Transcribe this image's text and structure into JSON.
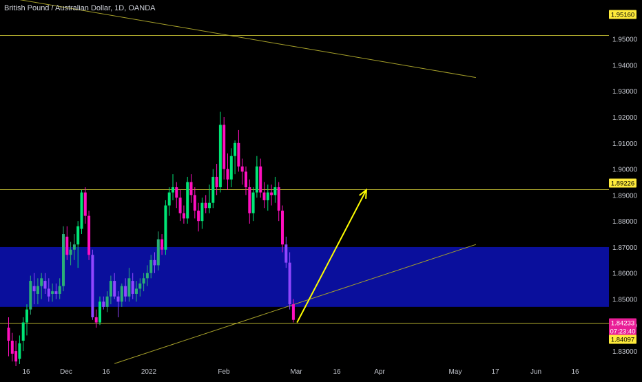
{
  "chart_data": {
    "type": "candlestick",
    "title": "British Pound / Australian Dollar, 1D, OANDA",
    "ylim": [
      1.8242,
      1.965
    ],
    "y_ticks": [
      "1.83000",
      "1.84000",
      "1.85000",
      "1.86000",
      "1.87000",
      "1.88000",
      "1.89000",
      "1.90000",
      "1.91000",
      "1.92000",
      "1.93000",
      "1.94000",
      "1.95000"
    ],
    "x_ticks": [
      "16",
      "Dec",
      "16",
      "2022",
      "Feb",
      "Mar",
      "16",
      "Apr",
      "May",
      "17",
      "Jun",
      "16"
    ],
    "price_labels": [
      {
        "text": "1.95160",
        "value": 1.9516,
        "color": "#ffeb3b",
        "text_color": "#000000"
      },
      {
        "text": "1.89226",
        "value": 1.89226,
        "color": "#ffeb3b",
        "text_color": "#000000"
      },
      {
        "text": "1.84233",
        "value": 1.84233,
        "color": "#e91e97",
        "text_color": "#ffffff"
      },
      {
        "text": "07:23:40",
        "value": 1.84233,
        "color": "#e91e97",
        "text_color": "#ffffff"
      },
      {
        "text": "1.84097",
        "value": 1.84097,
        "color": "#ffeb3b",
        "text_color": "#000000"
      }
    ],
    "horizontal_lines": [
      1.9516,
      1.89226,
      1.84097
    ],
    "zone": {
      "from": 1.847,
      "to": 1.87,
      "color": "#0a0f9c"
    },
    "candles": [
      [
        1.839,
        1.843,
        1.828,
        1.834
      ],
      [
        1.834,
        1.837,
        1.826,
        1.829
      ],
      [
        1.83,
        1.834,
        1.823,
        1.826
      ],
      [
        1.827,
        1.836,
        1.825,
        1.833
      ],
      [
        1.834,
        1.843,
        1.83,
        1.841
      ],
      [
        1.841,
        1.848,
        1.836,
        1.846
      ],
      [
        1.846,
        1.859,
        1.844,
        1.857
      ],
      [
        1.855,
        1.86,
        1.848,
        1.853
      ],
      [
        1.852,
        1.858,
        1.848,
        1.855
      ],
      [
        1.855,
        1.86,
        1.85,
        1.858
      ],
      [
        1.857,
        1.86,
        1.852,
        1.854
      ],
      [
        1.854,
        1.858,
        1.849,
        1.851
      ],
      [
        1.852,
        1.856,
        1.849,
        1.853
      ],
      [
        1.853,
        1.856,
        1.85,
        1.852
      ],
      [
        1.852,
        1.858,
        1.85,
        1.855
      ],
      [
        1.855,
        1.878,
        1.853,
        1.875
      ],
      [
        1.874,
        1.878,
        1.865,
        1.867
      ],
      [
        1.867,
        1.872,
        1.863,
        1.869
      ],
      [
        1.869,
        1.875,
        1.865,
        1.871
      ],
      [
        1.871,
        1.88,
        1.862,
        1.878
      ],
      [
        1.877,
        1.892,
        1.875,
        1.891
      ],
      [
        1.891,
        1.893,
        1.879,
        1.882
      ],
      [
        1.882,
        1.884,
        1.865,
        1.867
      ],
      [
        1.867,
        1.869,
        1.842,
        1.843
      ],
      [
        1.843,
        1.846,
        1.839,
        1.841
      ],
      [
        1.841,
        1.851,
        1.84,
        1.849
      ],
      [
        1.849,
        1.851,
        1.846,
        1.847
      ],
      [
        1.847,
        1.853,
        1.845,
        1.851
      ],
      [
        1.851,
        1.859,
        1.848,
        1.857
      ],
      [
        1.857,
        1.86,
        1.85,
        1.851
      ],
      [
        1.851,
        1.853,
        1.843,
        1.849
      ],
      [
        1.849,
        1.856,
        1.847,
        1.855
      ],
      [
        1.855,
        1.858,
        1.849,
        1.851
      ],
      [
        1.851,
        1.862,
        1.849,
        1.858
      ],
      [
        1.857,
        1.86,
        1.85,
        1.852
      ],
      [
        1.852,
        1.857,
        1.849,
        1.854
      ],
      [
        1.854,
        1.858,
        1.851,
        1.856
      ],
      [
        1.856,
        1.86,
        1.853,
        1.858
      ],
      [
        1.858,
        1.863,
        1.855,
        1.86
      ],
      [
        1.86,
        1.867,
        1.858,
        1.865
      ],
      [
        1.865,
        1.868,
        1.86,
        1.863
      ],
      [
        1.863,
        1.876,
        1.861,
        1.873
      ],
      [
        1.873,
        1.875,
        1.867,
        1.869
      ],
      [
        1.869,
        1.888,
        1.867,
        1.886
      ],
      [
        1.886,
        1.893,
        1.882,
        1.891
      ],
      [
        1.891,
        1.898,
        1.888,
        1.893
      ],
      [
        1.893,
        1.895,
        1.885,
        1.889
      ],
      [
        1.889,
        1.892,
        1.88,
        1.883
      ],
      [
        1.883,
        1.886,
        1.879,
        1.881
      ],
      [
        1.881,
        1.897,
        1.879,
        1.895
      ],
      [
        1.895,
        1.898,
        1.887,
        1.89
      ],
      [
        1.89,
        1.893,
        1.881,
        1.884
      ],
      [
        1.884,
        1.887,
        1.876,
        1.88
      ],
      [
        1.88,
        1.889,
        1.877,
        1.887
      ],
      [
        1.887,
        1.89,
        1.883,
        1.885
      ],
      [
        1.885,
        1.894,
        1.883,
        1.887
      ],
      [
        1.887,
        1.9,
        1.885,
        1.897
      ],
      [
        1.897,
        1.902,
        1.89,
        1.893
      ],
      [
        1.893,
        1.922,
        1.891,
        1.917
      ],
      [
        1.917,
        1.92,
        1.896,
        1.9
      ],
      [
        1.9,
        1.906,
        1.892,
        1.896
      ],
      [
        1.896,
        1.908,
        1.893,
        1.905
      ],
      [
        1.905,
        1.911,
        1.898,
        1.91
      ],
      [
        1.91,
        1.915,
        1.899,
        1.901
      ],
      [
        1.901,
        1.904,
        1.894,
        1.899
      ],
      [
        1.899,
        1.901,
        1.89,
        1.893
      ],
      [
        1.893,
        1.896,
        1.879,
        1.883
      ],
      [
        1.883,
        1.893,
        1.88,
        1.891
      ],
      [
        1.891,
        1.905,
        1.889,
        1.901
      ],
      [
        1.901,
        1.904,
        1.889,
        1.891
      ],
      [
        1.891,
        1.895,
        1.885,
        1.888
      ],
      [
        1.888,
        1.894,
        1.884,
        1.891
      ],
      [
        1.891,
        1.894,
        1.886,
        1.89
      ],
      [
        1.89,
        1.897,
        1.887,
        1.893
      ],
      [
        1.893,
        1.895,
        1.88,
        1.884
      ],
      [
        1.884,
        1.886,
        1.868,
        1.871
      ],
      [
        1.871,
        1.874,
        1.862,
        1.864
      ],
      [
        1.864,
        1.868,
        1.846,
        1.848
      ],
      [
        1.848,
        1.85,
        1.841,
        1.842
      ]
    ],
    "trendlines": [
      {
        "from": {
          "candle": -4,
          "value": 1.9668
        },
        "to": {
          "candle": 128,
          "value": 1.9352
        },
        "color": "#a7a12a",
        "width": 1
      },
      {
        "from": {
          "candle": 29,
          "value": 1.8252
        },
        "to": {
          "candle": 128,
          "value": 1.871
        },
        "color": "#a7a12a",
        "width": 1
      }
    ],
    "projection_arrow": {
      "from": {
        "candle": 79,
        "value": 1.84097
      },
      "to": {
        "candle": 98,
        "value": 1.892
      },
      "color": "#ffff00"
    },
    "bull_color": "#00e676",
    "bear_color": "#ff0fbf",
    "zone_bull_color": "#2aaf77",
    "zone_bear_color": "#9146ff",
    "grid": false,
    "legend": "none"
  }
}
